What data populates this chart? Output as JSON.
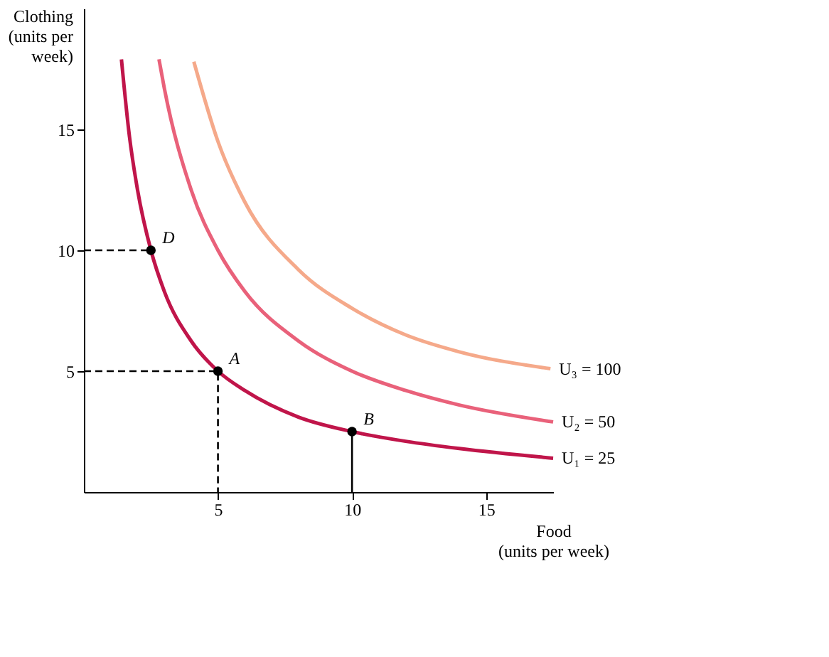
{
  "chart_data": {
    "type": "line",
    "xlabel": "Food\n(units per week)",
    "ylabel": "Clothing\n(units per\nweek)",
    "xlim": [
      0,
      17.5
    ],
    "ylim": [
      0,
      20
    ],
    "xticks": [
      5,
      10,
      15
    ],
    "yticks": [
      5,
      10,
      15
    ],
    "grid": false,
    "legend": false,
    "marker": "none",
    "line_style": "solid",
    "series": [
      {
        "name": "U₁ = 25",
        "color": "#c0154a",
        "x": [
          1.4,
          1.7,
          2,
          2.5,
          3,
          4,
          5,
          6,
          8,
          10,
          12,
          14,
          17.5
        ],
        "values": [
          17.9,
          14.7,
          12.5,
          10,
          8.3,
          6.25,
          5,
          4.2,
          3.1,
          2.5,
          2.1,
          1.8,
          1.4
        ]
      },
      {
        "name": "U₂ = 50",
        "color": "#e9617a",
        "x": [
          2.8,
          3,
          4,
          5,
          6,
          8,
          10,
          12,
          14,
          17.5
        ],
        "values": [
          17.9,
          16.7,
          12.5,
          10,
          8.3,
          6.25,
          5,
          4.2,
          3.6,
          2.9
        ]
      },
      {
        "name": "U₃ = 100",
        "color": "#f5a98a",
        "x": [
          4.1,
          5,
          6,
          8,
          10,
          12,
          14,
          17.4
        ],
        "values": [
          17.8,
          14.5,
          12,
          9.2,
          7.6,
          6.5,
          5.8,
          5.1
        ]
      },
      {
        "color": "#000000",
        "line_style": "dashed",
        "x": [
          0,
          2.5
        ],
        "values": [
          10,
          10
        ]
      },
      {
        "color": "#000000",
        "line_style": "dashed",
        "x": [
          0,
          5,
          5
        ],
        "values": [
          5,
          5,
          0
        ]
      },
      {
        "color": "#000000",
        "line_style": "solid",
        "x": [
          10,
          10
        ],
        "values": [
          0,
          2.5
        ]
      },
      {
        "type": "scatter",
        "marker": "circle",
        "color": "#000000",
        "x": [
          2.5,
          5,
          10
        ],
        "values": [
          10,
          5,
          2.5
        ]
      }
    ],
    "annotations": [
      {
        "text": "D",
        "x": 2.5,
        "y": 10
      },
      {
        "text": "A",
        "x": 5,
        "y": 5
      },
      {
        "text": "B",
        "x": 10,
        "y": 2.5
      }
    ]
  }
}
